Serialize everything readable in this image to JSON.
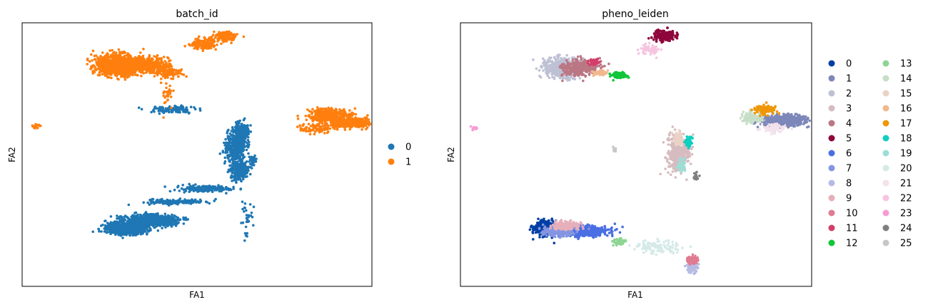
{
  "chart_data": [
    {
      "type": "scatter",
      "title": "batch_id",
      "xlabel": "FA1",
      "ylabel": "FA2",
      "xlim": [
        0,
        100
      ],
      "ylim": [
        0,
        100
      ],
      "ticks": "none",
      "legend": {
        "placement": "right",
        "columns": 1
      },
      "series": [
        {
          "name": "0",
          "color": "#1f77b4",
          "clusters": [
            {
              "x": 30,
              "y": 78,
              "sx": 2.8,
              "sy": 1.1,
              "n": 900
            },
            {
              "x": 37,
              "y": 75,
              "sx": 3.5,
              "sy": 1.0,
              "n": 800
            },
            {
              "x": 44,
              "y": 68,
              "sx": 4.0,
              "sy": 0.5,
              "n": 180
            },
            {
              "x": 52,
              "y": 63,
              "sx": 4.0,
              "sy": 0.6,
              "n": 160
            },
            {
              "x": 62,
              "y": 56,
              "sx": 1.3,
              "sy": 2.0,
              "n": 250
            },
            {
              "x": 61,
              "y": 47,
              "sx": 1.5,
              "sy": 3.0,
              "n": 380
            },
            {
              "x": 63,
              "y": 41,
              "sx": 1.0,
              "sy": 1.5,
              "n": 200
            },
            {
              "x": 66,
              "y": 52,
              "sx": 0.6,
              "sy": 0.8,
              "n": 30
            },
            {
              "x": 43,
              "y": 33,
              "sx": 3.5,
              "sy": 0.7,
              "n": 120
            },
            {
              "x": 64,
              "y": 75,
              "sx": 0.7,
              "sy": 3.0,
              "n": 30
            }
          ]
        },
        {
          "name": "1",
          "color": "#ff7f0e",
          "clusters": [
            {
              "x": 27,
              "y": 16,
              "sx": 3.0,
              "sy": 2.0,
              "n": 900
            },
            {
              "x": 35,
              "y": 16,
              "sx": 3.5,
              "sy": 1.4,
              "n": 450
            },
            {
              "x": 42,
              "y": 19,
              "sx": 2.0,
              "sy": 0.8,
              "n": 120
            },
            {
              "x": 52,
              "y": 8,
              "sx": 1.8,
              "sy": 1.0,
              "n": 160
            },
            {
              "x": 58,
              "y": 5,
              "sx": 1.5,
              "sy": 0.8,
              "n": 150
            },
            {
              "x": 88,
              "y": 35,
              "sx": 3.0,
              "sy": 1.2,
              "n": 350
            },
            {
              "x": 94,
              "y": 38,
              "sx": 3.5,
              "sy": 1.0,
              "n": 350
            },
            {
              "x": 84,
              "y": 40,
              "sx": 2.5,
              "sy": 1.0,
              "n": 80
            },
            {
              "x": 42,
              "y": 27,
              "sx": 1.0,
              "sy": 3.0,
              "n": 30
            },
            {
              "x": 4,
              "y": 39,
              "sx": 0.5,
              "sy": 0.4,
              "n": 20
            }
          ]
        }
      ]
    },
    {
      "type": "scatter",
      "title": "pheno_leiden",
      "xlabel": "FA1",
      "ylabel": "FA2",
      "xlim": [
        0,
        100
      ],
      "ylim": [
        0,
        100
      ],
      "ticks": "none",
      "legend": {
        "placement": "right",
        "columns": 2
      },
      "series": [
        {
          "name": "0",
          "color": "#023fa5",
          "clusters": [
            {
              "x": 24,
              "y": 78,
              "sx": 1.4,
              "sy": 1.3,
              "n": 420
            }
          ]
        },
        {
          "name": "1",
          "color": "#7d87b9",
          "clusters": [
            {
              "x": 92,
              "y": 37,
              "sx": 3.5,
              "sy": 1.1,
              "n": 380
            }
          ]
        },
        {
          "name": "2",
          "color": "#bec1d4",
          "clusters": [
            {
              "x": 29,
              "y": 17,
              "sx": 2.5,
              "sy": 2.0,
              "n": 500
            }
          ]
        },
        {
          "name": "3",
          "color": "#d6bcc0",
          "clusters": [
            {
              "x": 62,
              "y": 50,
              "sx": 1.5,
              "sy": 3.5,
              "n": 380
            }
          ]
        },
        {
          "name": "4",
          "color": "#bb7784",
          "clusters": [
            {
              "x": 34,
              "y": 17,
              "sx": 2.5,
              "sy": 1.4,
              "n": 380
            }
          ]
        },
        {
          "name": "5",
          "color": "#8e063b",
          "clusters": [
            {
              "x": 58,
              "y": 5,
              "sx": 1.5,
              "sy": 1.0,
              "n": 200
            }
          ]
        },
        {
          "name": "6",
          "color": "#4a6fe3",
          "clusters": [
            {
              "x": 35,
              "y": 79,
              "sx": 3.5,
              "sy": 0.9,
              "n": 600
            }
          ]
        },
        {
          "name": "7",
          "color": "#8595e1",
          "clusters": [
            {
              "x": 28,
              "y": 79,
              "sx": 2.0,
              "sy": 0.9,
              "n": 300
            }
          ]
        },
        {
          "name": "8",
          "color": "#b5bbe3",
          "clusters": [
            {
              "x": 66,
              "y": 93,
              "sx": 0.8,
              "sy": 1.0,
              "n": 90
            }
          ]
        },
        {
          "name": "9",
          "color": "#e6afb9",
          "clusters": [
            {
              "x": 30,
              "y": 77,
              "sx": 2.0,
              "sy": 0.8,
              "n": 160
            }
          ]
        },
        {
          "name": "10",
          "color": "#e07b91",
          "clusters": [
            {
              "x": 66,
              "y": 90,
              "sx": 0.8,
              "sy": 0.7,
              "n": 90
            }
          ]
        },
        {
          "name": "11",
          "color": "#d33f6a",
          "clusters": [
            {
              "x": 38,
              "y": 15,
              "sx": 0.7,
              "sy": 0.6,
              "n": 60
            }
          ]
        },
        {
          "name": "12",
          "color": "#11c638",
          "clusters": [
            {
              "x": 45,
              "y": 20,
              "sx": 1.2,
              "sy": 0.6,
              "n": 90
            }
          ]
        },
        {
          "name": "13",
          "color": "#8dd593",
          "clusters": [
            {
              "x": 45,
              "y": 83,
              "sx": 1.0,
              "sy": 0.5,
              "n": 60
            }
          ]
        },
        {
          "name": "14",
          "color": "#c6dec7",
          "clusters": [
            {
              "x": 83,
              "y": 36,
              "sx": 1.5,
              "sy": 0.9,
              "n": 120
            }
          ]
        },
        {
          "name": "15",
          "color": "#ead3c6",
          "clusters": [
            {
              "x": 62,
              "y": 44,
              "sx": 0.7,
              "sy": 1.2,
              "n": 70
            }
          ]
        },
        {
          "name": "16",
          "color": "#f0b98d",
          "clusters": [
            {
              "x": 40,
              "y": 19,
              "sx": 1.0,
              "sy": 0.5,
              "n": 70
            }
          ]
        },
        {
          "name": "17",
          "color": "#ef9708",
          "clusters": [
            {
              "x": 87,
              "y": 33,
              "sx": 1.5,
              "sy": 0.8,
              "n": 110
            }
          ]
        },
        {
          "name": "18",
          "color": "#0fcfc0",
          "clusters": [
            {
              "x": 65,
              "y": 45,
              "sx": 0.5,
              "sy": 1.2,
              "n": 60
            }
          ]
        },
        {
          "name": "19",
          "color": "#9cded6",
          "clusters": [
            {
              "x": 63,
              "y": 54,
              "sx": 0.5,
              "sy": 1.0,
              "n": 50
            }
          ]
        },
        {
          "name": "20",
          "color": "#d5eae7",
          "clusters": [
            {
              "x": 56,
              "y": 85,
              "sx": 3.5,
              "sy": 1.2,
              "n": 110
            }
          ]
        },
        {
          "name": "21",
          "color": "#f3e1eb",
          "clusters": [
            {
              "x": 89,
              "y": 40,
              "sx": 1.5,
              "sy": 0.8,
              "n": 80
            }
          ]
        },
        {
          "name": "22",
          "color": "#f6c4e1",
          "clusters": [
            {
              "x": 54,
              "y": 10,
              "sx": 1.5,
              "sy": 1.0,
              "n": 60
            }
          ]
        },
        {
          "name": "23",
          "color": "#f79cd4",
          "clusters": [
            {
              "x": 4,
              "y": 40,
              "sx": 0.5,
              "sy": 0.4,
              "n": 20
            }
          ]
        },
        {
          "name": "24",
          "color": "#7f7f7f",
          "clusters": [
            {
              "x": 67,
              "y": 58,
              "sx": 0.3,
              "sy": 0.8,
              "n": 20
            }
          ]
        },
        {
          "name": "25",
          "color": "#c7c7c7",
          "clusters": [
            {
              "x": 44,
              "y": 48,
              "sx": 0.3,
              "sy": 0.5,
              "n": 10
            }
          ]
        }
      ]
    }
  ]
}
